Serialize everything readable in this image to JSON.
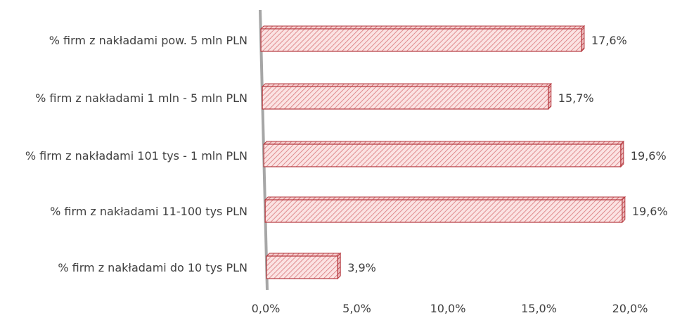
{
  "chart_data": {
    "type": "bar",
    "orientation": "horizontal",
    "style": "3d-hatched",
    "categories": [
      "% firm z nakładami pow. 5 mln PLN",
      "% firm z nakładami 1 mln - 5 mln PLN",
      "% firm z nakładami 101 tys - 1 mln PLN",
      "% firm z nakładami 11-100 tys PLN",
      "% firm z nakładami do 10 tys PLN"
    ],
    "values": [
      17.6,
      15.7,
      19.6,
      19.6,
      3.9
    ],
    "value_labels": [
      "17,6%",
      "15,7%",
      "19,6%",
      "19,6%",
      "3,9%"
    ],
    "xticks": [
      "0,0%",
      "5,0%",
      "10,0%",
      "15,0%",
      "20,0%"
    ],
    "xlim": [
      0,
      20
    ],
    "grid": false,
    "legend": "none",
    "colors": {
      "bar_fill": "#fbe3e3",
      "hatch": "#d9777a",
      "bar_edge": "#b5393f",
      "axis_wall": "#a6a6a6",
      "text": "#404040"
    }
  }
}
